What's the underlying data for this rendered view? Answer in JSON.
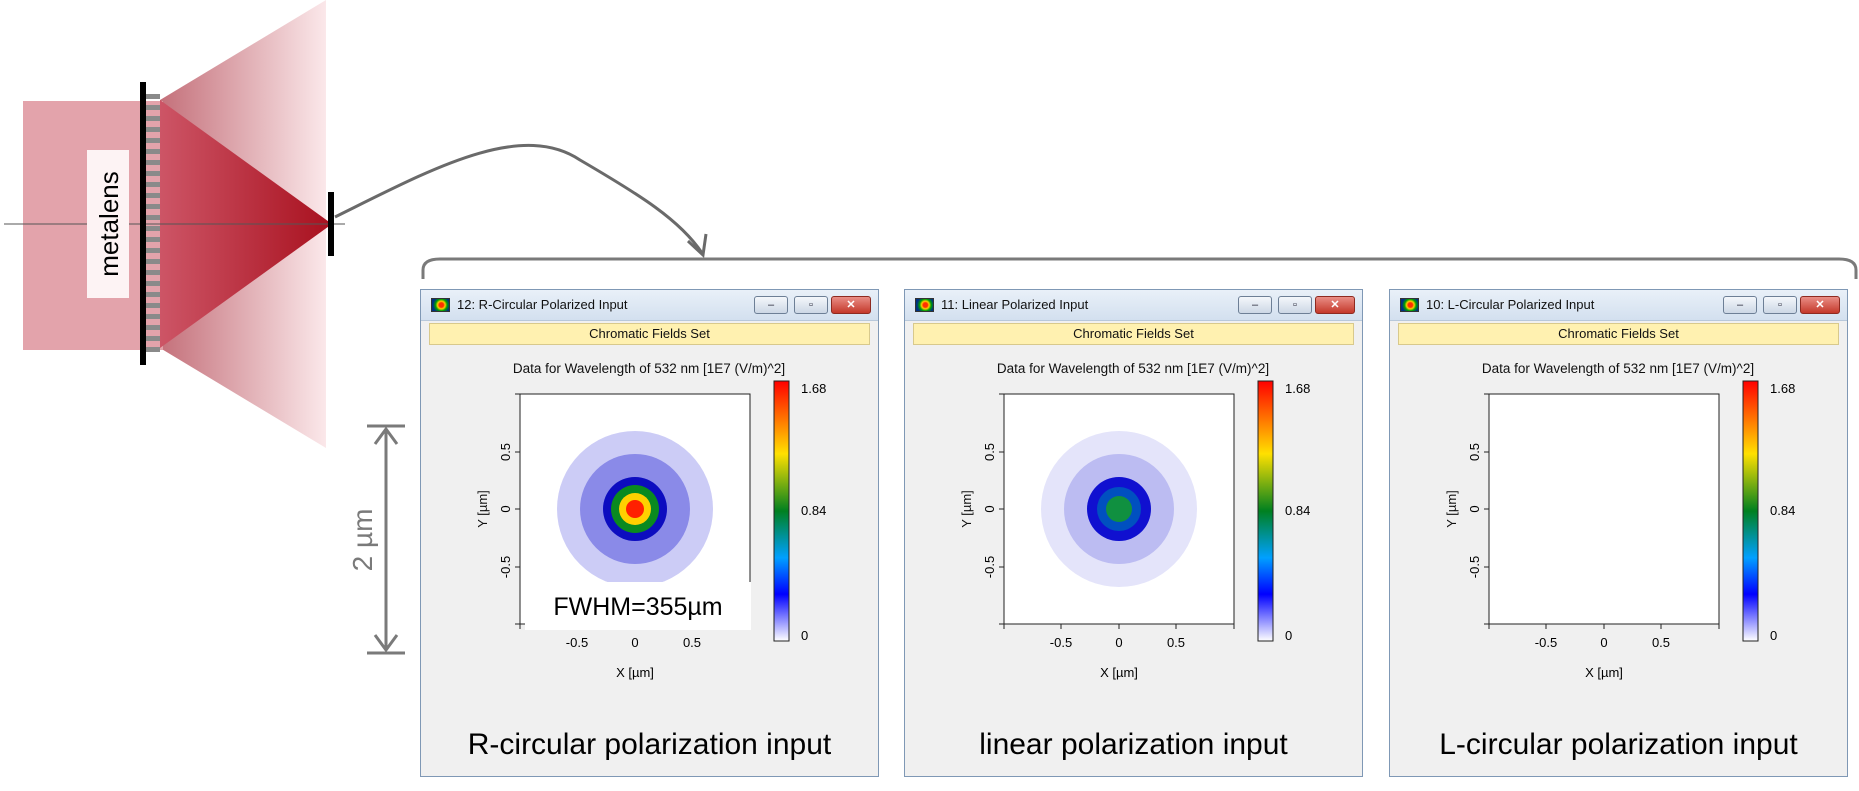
{
  "metalens_label": "metalens",
  "scale_bar_label": "2 µm",
  "fwhm_label": "FWHM=355µm",
  "colors": {
    "beam": "#a8101e",
    "window_border": "#7f98b5",
    "subtitle_bg": "#fff1b0"
  },
  "window_controls": {
    "minimize": "–",
    "maximize": "▫",
    "close": "✕"
  },
  "windows": [
    {
      "id": "r",
      "title": "12: R-Circular Polarized Input",
      "subtitle": "Chromatic Fields Set",
      "data_title": "Data for Wavelength of 532 nm  [1E7 (V/m)^2]",
      "caption": "R-circular polarization input",
      "ylabel": "Y [µm]",
      "xlabel": "X [µm]",
      "xticks": [
        "-0.5",
        "0",
        "0.5"
      ],
      "yticks": [
        "0.5",
        "0",
        "-0.5"
      ],
      "colorbar_ticks": [
        "1.68",
        "0.84",
        "0"
      ],
      "peak_intensity": 1.68
    },
    {
      "id": "lin",
      "title": "11: Linear Polarized Input",
      "subtitle": "Chromatic Fields Set",
      "data_title": "Data for Wavelength of 532 nm  [1E7 (V/m)^2]",
      "caption": "linear polarization input",
      "ylabel": "Y [µm]",
      "xlabel": "X [µm]",
      "xticks": [
        "-0.5",
        "0",
        "0.5"
      ],
      "yticks": [
        "0.5",
        "0",
        "-0.5"
      ],
      "colorbar_ticks": [
        "1.68",
        "0.84",
        "0"
      ],
      "peak_intensity": 0.84
    },
    {
      "id": "l",
      "title": "10: L-Circular Polarized Input",
      "subtitle": "Chromatic Fields Set",
      "data_title": "Data for Wavelength of 532 nm  [1E7 (V/m)^2]",
      "caption": "L-circular polarization input",
      "ylabel": "Y [µm]",
      "xlabel": "X [µm]",
      "xticks": [
        "-0.5",
        "0",
        "0.5"
      ],
      "yticks": [
        "0.5",
        "0",
        "-0.5"
      ],
      "colorbar_ticks": [
        "1.68",
        "0.84",
        "0"
      ],
      "peak_intensity": 0
    }
  ]
}
